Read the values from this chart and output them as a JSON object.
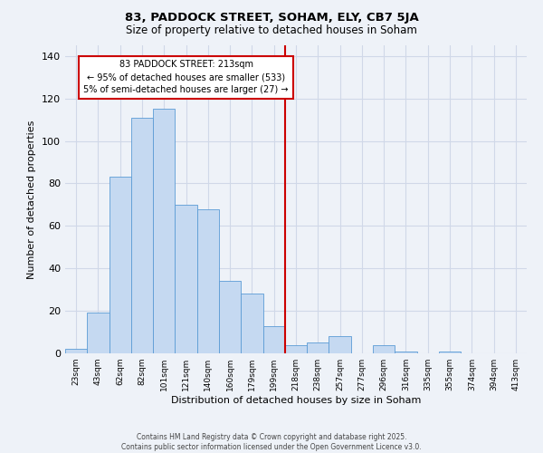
{
  "title": "83, PADDOCK STREET, SOHAM, ELY, CB7 5JA",
  "subtitle": "Size of property relative to detached houses in Soham",
  "xlabel": "Distribution of detached houses by size in Soham",
  "ylabel": "Number of detached properties",
  "categories": [
    "23sqm",
    "43sqm",
    "62sqm",
    "82sqm",
    "101sqm",
    "121sqm",
    "140sqm",
    "160sqm",
    "179sqm",
    "199sqm",
    "218sqm",
    "238sqm",
    "257sqm",
    "277sqm",
    "296sqm",
    "316sqm",
    "335sqm",
    "355sqm",
    "374sqm",
    "394sqm",
    "413sqm"
  ],
  "bar_heights": [
    2,
    19,
    83,
    111,
    115,
    70,
    68,
    34,
    28,
    13,
    4,
    5,
    8,
    0,
    4,
    1,
    0,
    1,
    0,
    0,
    0
  ],
  "bar_color": "#c5d9f1",
  "bar_edge_color": "#5b9bd5",
  "vline_color": "#cc0000",
  "annotation_text": "83 PADDOCK STREET: 213sqm\n← 95% of detached houses are smaller (533)\n5% of semi-detached houses are larger (27) →",
  "annotation_box_color": "#ffffff",
  "annotation_box_edge_color": "#cc0000",
  "ylim": [
    0,
    145
  ],
  "yticks": [
    0,
    20,
    40,
    60,
    80,
    100,
    120,
    140
  ],
  "grid_color": "#d0d8e8",
  "background_color": "#eef2f8",
  "footer_line1": "Contains HM Land Registry data © Crown copyright and database right 2025.",
  "footer_line2": "Contains public sector information licensed under the Open Government Licence v3.0."
}
